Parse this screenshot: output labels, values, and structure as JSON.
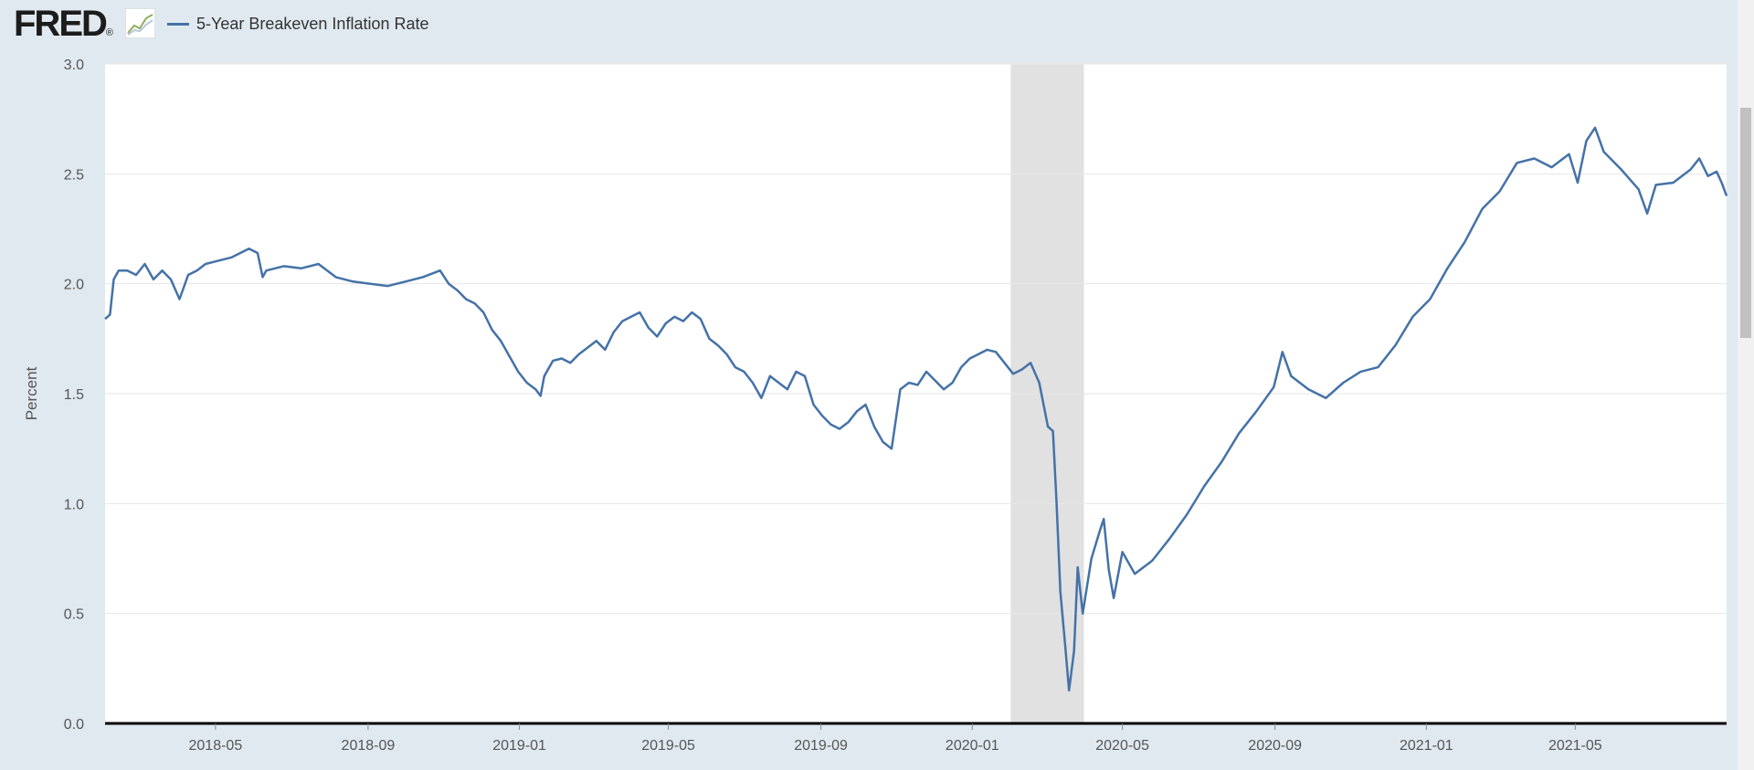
{
  "header": {
    "logo_text": "FRED",
    "logo_trademark": "®",
    "logo_icon": "line-chart-icon"
  },
  "colors": {
    "series": "#4572a7",
    "recession": "#e1e1e1",
    "background": "#e1e9f0",
    "gridline": "#e6e6e6"
  },
  "chart_data": {
    "type": "line",
    "ylabel": "Percent",
    "ylim": [
      0.0,
      3.0
    ],
    "y_ticks": [
      "0.0",
      "0.5",
      "1.0",
      "1.5",
      "2.0",
      "2.5",
      "3.0"
    ],
    "xlim": [
      "2018-02-01",
      "2021-08-31"
    ],
    "x_ticks": [
      "2018-05",
      "2018-09",
      "2019-01",
      "2019-05",
      "2019-09",
      "2020-01",
      "2020-05",
      "2020-09",
      "2021-01",
      "2021-05"
    ],
    "grid": true,
    "legend_position": "top-left",
    "recession": {
      "start": "2020-02-01",
      "end": "2020-03-31"
    },
    "series": [
      {
        "name": "5-Year Breakeven Inflation Rate",
        "points": [
          [
            "2018-02-01",
            1.84
          ],
          [
            "2018-02-05",
            1.86
          ],
          [
            "2018-02-08",
            2.02
          ],
          [
            "2018-02-12",
            2.06
          ],
          [
            "2018-02-19",
            2.06
          ],
          [
            "2018-02-26",
            2.04
          ],
          [
            "2018-03-05",
            2.09
          ],
          [
            "2018-03-12",
            2.02
          ],
          [
            "2018-03-19",
            2.06
          ],
          [
            "2018-03-26",
            2.02
          ],
          [
            "2018-04-02",
            1.93
          ],
          [
            "2018-04-09",
            2.04
          ],
          [
            "2018-04-16",
            2.06
          ],
          [
            "2018-04-23",
            2.09
          ],
          [
            "2018-04-30",
            2.1
          ],
          [
            "2018-05-07",
            2.11
          ],
          [
            "2018-05-14",
            2.12
          ],
          [
            "2018-05-21",
            2.14
          ],
          [
            "2018-05-28",
            2.16
          ],
          [
            "2018-06-04",
            2.14
          ],
          [
            "2018-06-08",
            2.03
          ],
          [
            "2018-06-11",
            2.06
          ],
          [
            "2018-06-25",
            2.08
          ],
          [
            "2018-07-09",
            2.07
          ],
          [
            "2018-07-23",
            2.09
          ],
          [
            "2018-08-06",
            2.03
          ],
          [
            "2018-08-20",
            2.01
          ],
          [
            "2018-09-03",
            2.0
          ],
          [
            "2018-09-17",
            1.99
          ],
          [
            "2018-10-01",
            2.01
          ],
          [
            "2018-10-15",
            2.03
          ],
          [
            "2018-10-29",
            2.06
          ],
          [
            "2018-11-05",
            2.0
          ],
          [
            "2018-11-12",
            1.97
          ],
          [
            "2018-11-19",
            1.93
          ],
          [
            "2018-11-26",
            1.91
          ],
          [
            "2018-12-03",
            1.87
          ],
          [
            "2018-12-10",
            1.79
          ],
          [
            "2018-12-17",
            1.74
          ],
          [
            "2018-12-24",
            1.67
          ],
          [
            "2018-12-31",
            1.6
          ],
          [
            "2019-01-07",
            1.55
          ],
          [
            "2019-01-14",
            1.52
          ],
          [
            "2019-01-18",
            1.49
          ],
          [
            "2019-01-21",
            1.58
          ],
          [
            "2019-01-28",
            1.65
          ],
          [
            "2019-02-04",
            1.66
          ],
          [
            "2019-02-11",
            1.64
          ],
          [
            "2019-02-18",
            1.68
          ],
          [
            "2019-02-25",
            1.71
          ],
          [
            "2019-03-04",
            1.74
          ],
          [
            "2019-03-11",
            1.7
          ],
          [
            "2019-03-18",
            1.78
          ],
          [
            "2019-03-25",
            1.83
          ],
          [
            "2019-04-01",
            1.85
          ],
          [
            "2019-04-08",
            1.87
          ],
          [
            "2019-04-15",
            1.8
          ],
          [
            "2019-04-22",
            1.76
          ],
          [
            "2019-04-29",
            1.82
          ],
          [
            "2019-05-06",
            1.85
          ],
          [
            "2019-05-13",
            1.83
          ],
          [
            "2019-05-20",
            1.87
          ],
          [
            "2019-05-27",
            1.84
          ],
          [
            "2019-06-03",
            1.75
          ],
          [
            "2019-06-10",
            1.72
          ],
          [
            "2019-06-17",
            1.68
          ],
          [
            "2019-06-24",
            1.62
          ],
          [
            "2019-07-01",
            1.6
          ],
          [
            "2019-07-08",
            1.55
          ],
          [
            "2019-07-15",
            1.48
          ],
          [
            "2019-07-22",
            1.58
          ],
          [
            "2019-07-29",
            1.55
          ],
          [
            "2019-08-05",
            1.52
          ],
          [
            "2019-08-12",
            1.6
          ],
          [
            "2019-08-19",
            1.58
          ],
          [
            "2019-08-26",
            1.45
          ],
          [
            "2019-09-02",
            1.4
          ],
          [
            "2019-09-09",
            1.36
          ],
          [
            "2019-09-16",
            1.34
          ],
          [
            "2019-09-23",
            1.37
          ],
          [
            "2019-09-30",
            1.42
          ],
          [
            "2019-10-07",
            1.45
          ],
          [
            "2019-10-14",
            1.35
          ],
          [
            "2019-10-21",
            1.28
          ],
          [
            "2019-10-28",
            1.25
          ],
          [
            "2019-11-04",
            1.52
          ],
          [
            "2019-11-11",
            1.55
          ],
          [
            "2019-11-18",
            1.54
          ],
          [
            "2019-11-25",
            1.6
          ],
          [
            "2019-12-02",
            1.56
          ],
          [
            "2019-12-09",
            1.52
          ],
          [
            "2019-12-16",
            1.55
          ],
          [
            "2019-12-23",
            1.62
          ],
          [
            "2019-12-30",
            1.66
          ],
          [
            "2020-01-06",
            1.68
          ],
          [
            "2020-01-13",
            1.7
          ],
          [
            "2020-01-20",
            1.69
          ],
          [
            "2020-01-27",
            1.64
          ],
          [
            "2020-02-03",
            1.59
          ],
          [
            "2020-02-10",
            1.61
          ],
          [
            "2020-02-17",
            1.64
          ],
          [
            "2020-02-24",
            1.55
          ],
          [
            "2020-03-02",
            1.35
          ],
          [
            "2020-03-06",
            1.33
          ],
          [
            "2020-03-09",
            1.0
          ],
          [
            "2020-03-12",
            0.6
          ],
          [
            "2020-03-16",
            0.35
          ],
          [
            "2020-03-19",
            0.15
          ],
          [
            "2020-03-23",
            0.33
          ],
          [
            "2020-03-26",
            0.71
          ],
          [
            "2020-03-30",
            0.5
          ],
          [
            "2020-04-06",
            0.75
          ],
          [
            "2020-04-13",
            0.88
          ],
          [
            "2020-04-16",
            0.93
          ],
          [
            "2020-04-20",
            0.7
          ],
          [
            "2020-04-24",
            0.57
          ],
          [
            "2020-05-01",
            0.78
          ],
          [
            "2020-05-11",
            0.68
          ],
          [
            "2020-05-25",
            0.74
          ],
          [
            "2020-06-08",
            0.84
          ],
          [
            "2020-06-22",
            0.95
          ],
          [
            "2020-07-06",
            1.08
          ],
          [
            "2020-07-20",
            1.19
          ],
          [
            "2020-08-03",
            1.32
          ],
          [
            "2020-08-17",
            1.42
          ],
          [
            "2020-08-31",
            1.53
          ],
          [
            "2020-09-07",
            1.69
          ],
          [
            "2020-09-14",
            1.58
          ],
          [
            "2020-09-28",
            1.52
          ],
          [
            "2020-10-12",
            1.48
          ],
          [
            "2020-10-26",
            1.55
          ],
          [
            "2020-11-09",
            1.6
          ],
          [
            "2020-11-23",
            1.62
          ],
          [
            "2020-12-07",
            1.72
          ],
          [
            "2020-12-21",
            1.85
          ],
          [
            "2021-01-04",
            1.93
          ],
          [
            "2021-01-18",
            2.07
          ],
          [
            "2021-02-01",
            2.19
          ],
          [
            "2021-02-15",
            2.34
          ],
          [
            "2021-03-01",
            2.42
          ],
          [
            "2021-03-15",
            2.55
          ],
          [
            "2021-03-29",
            2.57
          ],
          [
            "2021-04-12",
            2.53
          ],
          [
            "2021-04-26",
            2.59
          ],
          [
            "2021-05-03",
            2.46
          ],
          [
            "2021-05-10",
            2.65
          ],
          [
            "2021-05-17",
            2.71
          ],
          [
            "2021-05-24",
            2.6
          ],
          [
            "2021-06-07",
            2.52
          ],
          [
            "2021-06-21",
            2.43
          ],
          [
            "2021-06-28",
            2.32
          ],
          [
            "2021-07-05",
            2.45
          ],
          [
            "2021-07-19",
            2.46
          ],
          [
            "2021-08-02",
            2.52
          ],
          [
            "2021-08-09",
            2.57
          ],
          [
            "2021-08-16",
            2.49
          ],
          [
            "2021-08-23",
            2.51
          ],
          [
            "2021-08-27",
            2.46
          ],
          [
            "2021-08-31",
            2.4
          ]
        ]
      }
    ]
  }
}
